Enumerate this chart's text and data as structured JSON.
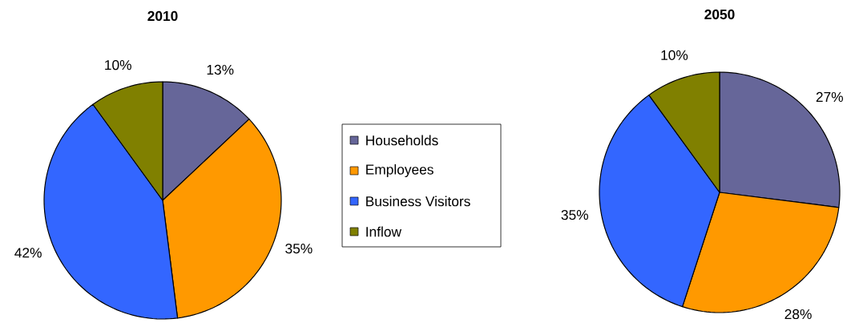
{
  "chart_data": [
    {
      "type": "pie",
      "title": "2010",
      "categories": [
        "Households",
        "Employees",
        "Business Visitors",
        "Inflow"
      ],
      "values": [
        13,
        35,
        42,
        10
      ],
      "value_labels": [
        "13%",
        "35%",
        "42%",
        "10%"
      ],
      "colors": [
        "#666699",
        "#ff9900",
        "#3366ff",
        "#808000"
      ],
      "legend": "right"
    },
    {
      "type": "pie",
      "title": "2050",
      "categories": [
        null,
        null,
        null,
        null
      ],
      "values": [
        27,
        28,
        35,
        10
      ],
      "value_labels": [
        "27%",
        "28%",
        "35%",
        "10%"
      ],
      "colors": [
        "#666699",
        "#ff9900",
        "#3366ff",
        "#808000"
      ]
    }
  ]
}
